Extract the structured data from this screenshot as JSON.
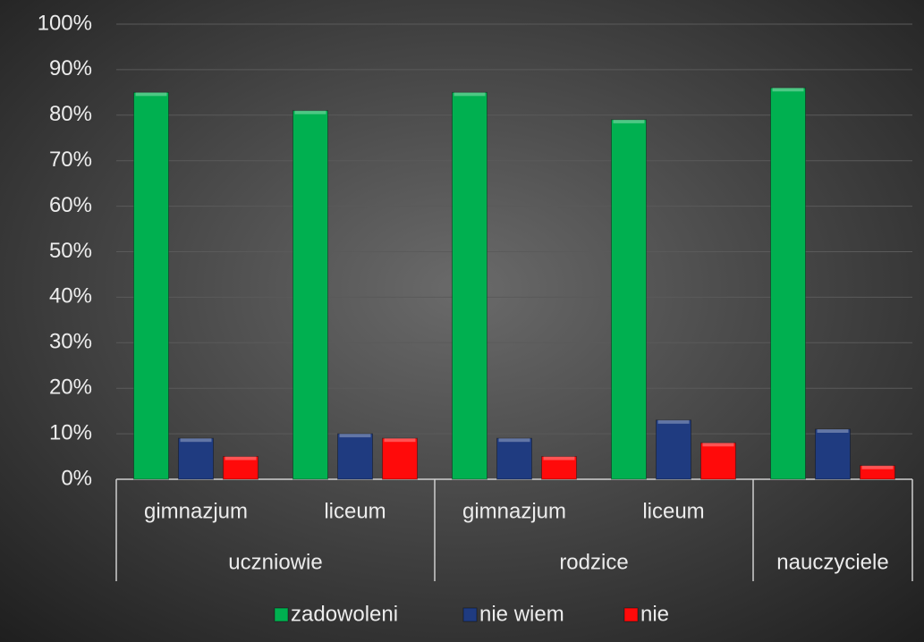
{
  "chart_data": {
    "type": "bar",
    "groups": [
      {
        "name": "uczniowie",
        "categories": [
          "gimnazjum",
          "liceum"
        ]
      },
      {
        "name": "rodzice",
        "categories": [
          "gimnazjum",
          "liceum"
        ]
      },
      {
        "name": "nauczyciele",
        "categories": [
          null
        ]
      }
    ],
    "series": [
      {
        "name": "zadowoleni",
        "color": "#00b050",
        "values": [
          85,
          81,
          85,
          79,
          86
        ]
      },
      {
        "name": "nie wiem",
        "color": "#1f3b80",
        "values": [
          9,
          10,
          9,
          13,
          11
        ]
      },
      {
        "name": "nie",
        "color": "#ff0a0a",
        "values": [
          5,
          9,
          5,
          8,
          3
        ]
      }
    ],
    "ylim": [
      0,
      100
    ],
    "yticks": [
      {
        "value": 0,
        "label": "0%"
      },
      {
        "value": 10,
        "label": "10%"
      },
      {
        "value": 20,
        "label": "20%"
      },
      {
        "value": 30,
        "label": "30%"
      },
      {
        "value": 40,
        "label": "40%"
      },
      {
        "value": 50,
        "label": "50%"
      },
      {
        "value": 60,
        "label": "60%"
      },
      {
        "value": 70,
        "label": "70%"
      },
      {
        "value": 80,
        "label": "80%"
      },
      {
        "value": 90,
        "label": "90%"
      },
      {
        "value": 100,
        "label": "100%"
      }
    ],
    "grid": true,
    "legend": "bottom"
  }
}
